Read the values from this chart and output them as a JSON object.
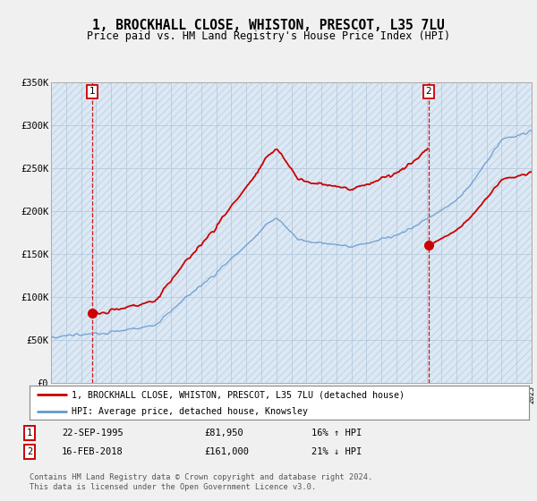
{
  "title": "1, BROCKHALL CLOSE, WHISTON, PRESCOT, L35 7LU",
  "subtitle": "Price paid vs. HM Land Registry's House Price Index (HPI)",
  "ylim": [
    0,
    350000
  ],
  "yticks": [
    0,
    50000,
    100000,
    150000,
    200000,
    250000,
    300000,
    350000
  ],
  "ytick_labels": [
    "£0",
    "£50K",
    "£100K",
    "£150K",
    "£200K",
    "£250K",
    "£300K",
    "£350K"
  ],
  "bg_color": "#f0f0f0",
  "plot_bg_color": "#dce9f5",
  "hpi_color": "#6699cc",
  "price_color": "#cc0000",
  "grid_color": "#b0c4d8",
  "hatch_color": "#c8d8e8",
  "t1_year": 1995.75,
  "t2_year": 2018.125,
  "t1_price": 81950,
  "t2_price": 161000,
  "transaction1_date": "22-SEP-1995",
  "transaction1_hpi_diff": "16% ↑ HPI",
  "transaction2_date": "16-FEB-2018",
  "transaction2_hpi_diff": "21% ↓ HPI",
  "legend_label1": "1, BROCKHALL CLOSE, WHISTON, PRESCOT, L35 7LU (detached house)",
  "legend_label2": "HPI: Average price, detached house, Knowsley",
  "footer": "Contains HM Land Registry data © Crown copyright and database right 2024.\nThis data is licensed under the Open Government Licence v3.0.",
  "price_fmt1": "£81,950",
  "price_fmt2": "£161,000",
  "xmin": 1993,
  "xmax": 2025
}
